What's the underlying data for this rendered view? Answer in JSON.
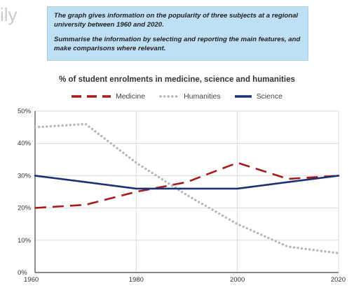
{
  "corner_text": "ily",
  "task": {
    "line1": "The graph gives information on the popularity of three subjects at a regional university between 1960 and 2020.",
    "line2": "Summarise the information by selecting and reporting the main features, and make comparisons where relevant."
  },
  "colors": {
    "medicine": "#a61c1c",
    "humanities": "#b7b7b7",
    "science": "#1a3275",
    "grid": "#d9d9d9",
    "axis": "#444444",
    "box": "#bfe0f4"
  },
  "chart_data": {
    "type": "line",
    "title": "% of student enrolments in medicine, science and humanities",
    "xlabel": "",
    "ylabel": "",
    "xlim": [
      1960,
      2020
    ],
    "ylim": [
      0,
      50
    ],
    "x_ticks": [
      1960,
      1980,
      2000,
      2020
    ],
    "y_ticks": [
      0,
      10,
      20,
      30,
      40,
      50
    ],
    "y_tick_labels": [
      "0%",
      "10%",
      "20%",
      "30%",
      "40%",
      "50%"
    ],
    "grid": true,
    "legend_position": "top-center",
    "x": [
      1960,
      1970,
      1980,
      1990,
      2000,
      2010,
      2020
    ],
    "series": [
      {
        "name": "Medicine",
        "style": "dashed",
        "color": "#a61c1c",
        "values": [
          20,
          21,
          25,
          28,
          34,
          29,
          30
        ]
      },
      {
        "name": "Humanities",
        "style": "dotted",
        "color": "#b7b7b7",
        "values": [
          45,
          46,
          34,
          24,
          15,
          8,
          6
        ]
      },
      {
        "name": "Science",
        "style": "solid",
        "color": "#1a3275",
        "values": [
          30,
          28,
          26,
          26,
          26,
          28,
          30
        ]
      }
    ]
  }
}
